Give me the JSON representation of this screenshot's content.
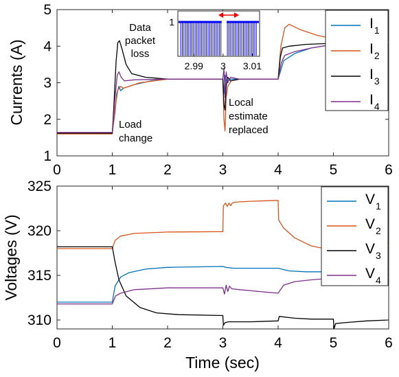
{
  "chart_data": [
    {
      "type": "line",
      "ylabel": "Currents (A)",
      "xlabel": "",
      "xlim": [
        0,
        6
      ],
      "ylim": [
        1,
        5
      ],
      "xticks": [
        "0",
        "1",
        "2",
        "3",
        "4",
        "5",
        "6"
      ],
      "yticks": [
        "1",
        "2",
        "3",
        "4",
        "5"
      ],
      "grid": false,
      "legend_position": "top-right",
      "series": [
        {
          "name": "I",
          "sub": "1",
          "color": "#0072BD",
          "points": [
            [
              0,
              1.63
            ],
            [
              1.0,
              1.63
            ],
            [
              1.05,
              2.2
            ],
            [
              1.08,
              2.7
            ],
            [
              1.12,
              2.9
            ],
            [
              1.15,
              2.78
            ],
            [
              1.2,
              2.85
            ],
            [
              1.4,
              2.95
            ],
            [
              1.7,
              3.05
            ],
            [
              2.0,
              3.1
            ],
            [
              3.0,
              3.1
            ],
            [
              3.02,
              2.7
            ],
            [
              3.04,
              3.2
            ],
            [
              3.07,
              3.05
            ],
            [
              3.12,
              3.1
            ],
            [
              4.0,
              3.1
            ],
            [
              4.1,
              3.6
            ],
            [
              4.3,
              3.8
            ],
            [
              4.6,
              3.95
            ],
            [
              5.0,
              4.05
            ],
            [
              5.5,
              4.1
            ],
            [
              6.0,
              4.12
            ]
          ]
        },
        {
          "name": "I",
          "sub": "2",
          "color": "#D95319",
          "points": [
            [
              0,
              1.6
            ],
            [
              1.0,
              1.6
            ],
            [
              1.05,
              2.3
            ],
            [
              1.1,
              2.8
            ],
            [
              1.15,
              2.9
            ],
            [
              1.2,
              2.85
            ],
            [
              1.5,
              3.0
            ],
            [
              2.0,
              3.1
            ],
            [
              3.0,
              3.1
            ],
            [
              3.02,
              2.0
            ],
            [
              3.04,
              1.68
            ],
            [
              3.06,
              2.6
            ],
            [
              3.09,
              2.9
            ],
            [
              3.15,
              3.05
            ],
            [
              3.3,
              3.1
            ],
            [
              4.0,
              3.1
            ],
            [
              4.05,
              4.0
            ],
            [
              4.12,
              4.5
            ],
            [
              4.2,
              4.6
            ],
            [
              4.4,
              4.45
            ],
            [
              4.7,
              4.3
            ],
            [
              5.0,
              4.2
            ],
            [
              5.5,
              4.15
            ],
            [
              6.0,
              4.1
            ]
          ]
        },
        {
          "name": "I",
          "sub": "3",
          "color": "#000000",
          "points": [
            [
              0,
              1.62
            ],
            [
              1.0,
              1.62
            ],
            [
              1.03,
              2.4
            ],
            [
              1.07,
              3.6
            ],
            [
              1.1,
              4.1
            ],
            [
              1.13,
              4.15
            ],
            [
              1.18,
              3.9
            ],
            [
              1.25,
              3.5
            ],
            [
              1.35,
              3.25
            ],
            [
              1.6,
              3.15
            ],
            [
              2.0,
              3.1
            ],
            [
              3.0,
              3.1
            ],
            [
              3.02,
              2.4
            ],
            [
              3.04,
              2.25
            ],
            [
              3.06,
              2.9
            ],
            [
              3.09,
              3.15
            ],
            [
              3.14,
              3.05
            ],
            [
              3.3,
              3.1
            ],
            [
              4.0,
              3.1
            ],
            [
              4.04,
              3.7
            ],
            [
              4.08,
              3.95
            ],
            [
              4.2,
              4.0
            ],
            [
              4.5,
              4.05
            ],
            [
              5.0,
              4.08
            ],
            [
              5.5,
              4.1
            ],
            [
              6.0,
              4.12
            ]
          ]
        },
        {
          "name": "I",
          "sub": "4",
          "color": "#7E2F8E",
          "points": [
            [
              0,
              1.64
            ],
            [
              1.0,
              1.64
            ],
            [
              1.05,
              2.6
            ],
            [
              1.09,
              3.2
            ],
            [
              1.12,
              3.3
            ],
            [
              1.16,
              3.15
            ],
            [
              1.22,
              3.05
            ],
            [
              1.4,
              3.08
            ],
            [
              2.0,
              3.1
            ],
            [
              3.0,
              3.1
            ],
            [
              3.02,
              3.4
            ],
            [
              3.04,
              2.6
            ],
            [
              3.06,
              3.3
            ],
            [
              3.09,
              3.0
            ],
            [
              3.14,
              3.15
            ],
            [
              3.3,
              3.1
            ],
            [
              4.0,
              3.1
            ],
            [
              4.06,
              3.55
            ],
            [
              4.12,
              3.75
            ],
            [
              4.3,
              3.85
            ],
            [
              4.6,
              3.95
            ],
            [
              5.0,
              4.05
            ],
            [
              5.5,
              4.1
            ],
            [
              6.0,
              4.12
            ]
          ]
        }
      ],
      "annotations": [
        {
          "name": "load-change",
          "lines": [
            "Load",
            "change"
          ],
          "x": 1.13,
          "y": 1.85
        },
        {
          "name": "local-estimate",
          "lines": [
            "Local",
            "estimate",
            "replaced"
          ],
          "x": 3.13,
          "y": 2.55
        }
      ],
      "inset": {
        "label_lines": [
          "Data",
          "packet",
          "loss"
        ],
        "label_color": "#FF0000",
        "xlim": [
          2.985,
          3.012
        ],
        "ylim": [
          0,
          1
        ],
        "xticks": [
          "2.99",
          "3",
          "3.01"
        ],
        "ytick": "1",
        "pulse_start": 2.9855,
        "pulse_end": 3.0115,
        "pulse_period": 0.00055,
        "gap": [
          2.9995,
          3.0012
        ],
        "bar_color": "#0000FF",
        "arrow_color": "#FF0000"
      }
    },
    {
      "type": "line",
      "ylabel": "Voltages (V)",
      "xlabel": "Time (sec)",
      "xlim": [
        0,
        6
      ],
      "ylim": [
        309,
        325
      ],
      "xticks": [
        "0",
        "1",
        "2",
        "3",
        "4",
        "5",
        "6"
      ],
      "yticks": [
        "310",
        "315",
        "320",
        "325"
      ],
      "grid": false,
      "legend_position": "top-right",
      "series": [
        {
          "name": "V",
          "sub": "1",
          "color": "#0072BD",
          "points": [
            [
              0,
              312
            ],
            [
              1.0,
              312
            ],
            [
              1.05,
              313.8
            ],
            [
              1.15,
              314.8
            ],
            [
              1.3,
              315.3
            ],
            [
              1.6,
              315.7
            ],
            [
              2.0,
              315.9
            ],
            [
              3.0,
              316
            ],
            [
              3.05,
              315.9
            ],
            [
              3.2,
              315.8
            ],
            [
              4.0,
              315.8
            ],
            [
              4.2,
              315.5
            ],
            [
              4.5,
              315.4
            ],
            [
              5.0,
              315.4
            ],
            [
              5.5,
              315.4
            ],
            [
              6.0,
              315.4
            ]
          ]
        },
        {
          "name": "V",
          "sub": "2",
          "color": "#D95319",
          "points": [
            [
              0,
              318
            ],
            [
              1.0,
              318
            ],
            [
              1.05,
              318.9
            ],
            [
              1.15,
              319.4
            ],
            [
              1.4,
              319.7
            ],
            [
              2.0,
              319.85
            ],
            [
              3.0,
              319.9
            ],
            [
              3.01,
              322.8
            ],
            [
              3.05,
              323.1
            ],
            [
              3.08,
              322.7
            ],
            [
              3.11,
              323.1
            ],
            [
              3.14,
              322.8
            ],
            [
              3.17,
              323.1
            ],
            [
              3.22,
              323.2
            ],
            [
              3.5,
              323.3
            ],
            [
              4.0,
              323.4
            ],
            [
              4.01,
              321.2
            ],
            [
              4.1,
              320.3
            ],
            [
              4.3,
              319.2
            ],
            [
              4.6,
              318.3
            ],
            [
              5.0,
              317.8
            ],
            [
              5.4,
              317.8
            ],
            [
              5.8,
              318.1
            ],
            [
              6.0,
              318.3
            ]
          ]
        },
        {
          "name": "V",
          "sub": "3",
          "color": "#000000",
          "points": [
            [
              0,
              318.2
            ],
            [
              1.0,
              318.2
            ],
            [
              1.05,
              316.5
            ],
            [
              1.12,
              314.5
            ],
            [
              1.25,
              312.7
            ],
            [
              1.5,
              311.4
            ],
            [
              1.8,
              310.8
            ],
            [
              2.2,
              310.6
            ],
            [
              3.0,
              310.5
            ],
            [
              3.01,
              309.4
            ],
            [
              3.04,
              309.7
            ],
            [
              3.1,
              309.8
            ],
            [
              3.5,
              309.8
            ],
            [
              4.0,
              309.9
            ],
            [
              4.02,
              310.4
            ],
            [
              4.3,
              310.2
            ],
            [
              4.6,
              310.1
            ],
            [
              5.0,
              310.1
            ],
            [
              5.01,
              309.0
            ],
            [
              5.04,
              309.6
            ],
            [
              5.2,
              309.7
            ],
            [
              5.6,
              309.9
            ],
            [
              6.0,
              310
            ]
          ]
        },
        {
          "name": "V",
          "sub": "4",
          "color": "#7E2F8E",
          "points": [
            [
              0,
              311.8
            ],
            [
              1.0,
              311.8
            ],
            [
              1.06,
              312.7
            ],
            [
              1.15,
              313.0
            ],
            [
              1.4,
              313.4
            ],
            [
              2.0,
              313.6
            ],
            [
              3.0,
              313.6
            ],
            [
              3.03,
              312.9
            ],
            [
              3.06,
              313.9
            ],
            [
              3.09,
              313.2
            ],
            [
              3.12,
              313.8
            ],
            [
              3.16,
              313.5
            ],
            [
              3.3,
              313.4
            ],
            [
              4.0,
              313.0
            ],
            [
              4.1,
              313.9
            ],
            [
              4.3,
              314.3
            ],
            [
              4.6,
              314.5
            ],
            [
              5.0,
              314.7
            ],
            [
              5.5,
              314.8
            ],
            [
              6.0,
              314.8
            ]
          ]
        }
      ]
    }
  ]
}
